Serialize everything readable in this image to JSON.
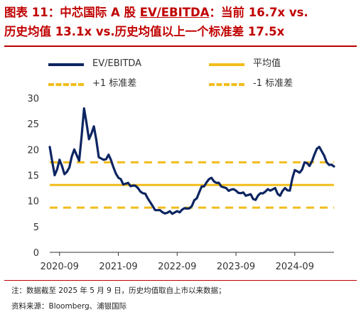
{
  "title": {
    "line1_prefix": "图表 11：中芯国际 A 股 ",
    "line1_metric": "EV/EBITDA",
    "line1_suffix": "：当前 16.7x vs.",
    "line2": "历史均值 13.1x vs.历史均值以上一个标准差 17.5x"
  },
  "legend": {
    "series": "EV/EBITDA",
    "mean": "平均值",
    "plus_one": "+1 标准差",
    "minus_one": "-1 标准差"
  },
  "colors": {
    "title": "#c00000",
    "series": "#0d2561",
    "bands": "#f2bd1c"
  },
  "footnote": {
    "note": "注：数据截至 2025 年 5 月 9 日，历史均值取自上市以来数据；",
    "source": "资料来源：Bloomberg、浦银国际"
  },
  "chart_data": {
    "type": "line",
    "title": "",
    "xlabel": "",
    "ylabel": "",
    "ylim": [
      0,
      30
    ],
    "yticks": [
      0,
      5,
      10,
      15,
      20,
      25,
      30
    ],
    "xlim": [
      "2020-07",
      "2025-05"
    ],
    "xticks": [
      "2020-09",
      "2021-09",
      "2022-09",
      "2023-09",
      "2024-09"
    ],
    "grid": false,
    "legend_position": "top",
    "reference_lines": [
      {
        "name": "平均值",
        "value": 13.1,
        "style": "solid"
      },
      {
        "name": "+1 标准差",
        "value": 17.5,
        "style": "dashed"
      },
      {
        "name": "-1 标准差",
        "value": 8.7,
        "style": "dashed"
      }
    ],
    "series": [
      {
        "name": "EV/EBITDA",
        "x": [
          "2020-07",
          "2020-08",
          "2020-09",
          "2020-10",
          "2020-11",
          "2020-12",
          "2021-01",
          "2021-02",
          "2021-03",
          "2021-04",
          "2021-05",
          "2021-06",
          "2021-07",
          "2021-08",
          "2021-09",
          "2021-10",
          "2021-11",
          "2021-12",
          "2022-01",
          "2022-02",
          "2022-03",
          "2022-04",
          "2022-05",
          "2022-06",
          "2022-07",
          "2022-08",
          "2022-09",
          "2022-10",
          "2022-11",
          "2022-12",
          "2023-01",
          "2023-02",
          "2023-03",
          "2023-04",
          "2023-05",
          "2023-06",
          "2023-07",
          "2023-08",
          "2023-09",
          "2023-10",
          "2023-11",
          "2023-12",
          "2024-01",
          "2024-02",
          "2024-03",
          "2024-04",
          "2024-05",
          "2024-06",
          "2024-07",
          "2024-08",
          "2024-09",
          "2024-10",
          "2024-11",
          "2024-12",
          "2025-01",
          "2025-02",
          "2025-03",
          "2025-04",
          "2025-05"
        ],
        "values": [
          20.5,
          15.0,
          18.0,
          15.2,
          16.5,
          20.0,
          17.8,
          28.0,
          22.0,
          24.5,
          18.5,
          18.0,
          19.0,
          16.5,
          14.5,
          13.2,
          13.5,
          13.0,
          12.5,
          11.5,
          10.5,
          9.0,
          8.2,
          7.8,
          7.7,
          7.5,
          8.0,
          8.3,
          8.5,
          9.0,
          10.5,
          12.8,
          13.6,
          14.5,
          13.5,
          12.8,
          12.5,
          12.2,
          12.0,
          11.5,
          11.0,
          11.3,
          10.2,
          11.5,
          11.8,
          12.0,
          12.5,
          11.0,
          12.5,
          12.0,
          16.0,
          15.5,
          17.5,
          16.8,
          19.0,
          20.5,
          18.8,
          17.0,
          16.7
        ]
      }
    ]
  }
}
